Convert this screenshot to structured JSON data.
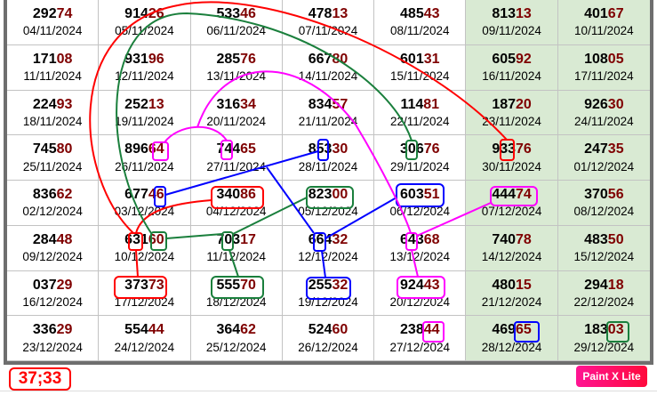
{
  "colors": {
    "head": "#000000",
    "tail": "#7f0000",
    "weekend_bg": "#d9ead3",
    "red": "#ff0000",
    "green": "#1a7f3c",
    "blue": "#0000ff",
    "magenta": "#ff00ff"
  },
  "rows": [
    [
      {
        "a": "292",
        "b": "74",
        "date": "04/11/2024"
      },
      {
        "a": "914",
        "b": "26",
        "date": "05/11/2024"
      },
      {
        "a": "533",
        "b": "46",
        "date": "06/11/2024"
      },
      {
        "a": "478",
        "b": "13",
        "date": "07/11/2024"
      },
      {
        "a": "485",
        "b": "43",
        "date": "08/11/2024"
      },
      {
        "a": "813",
        "b": "13",
        "date": "09/11/2024"
      },
      {
        "a": "401",
        "b": "67",
        "date": "10/11/2024"
      }
    ],
    [
      {
        "a": "171",
        "b": "08",
        "date": "11/11/2024"
      },
      {
        "a": "931",
        "b": "96",
        "date": "12/11/2024"
      },
      {
        "a": "285",
        "b": "76",
        "date": "13/11/2024"
      },
      {
        "a": "667",
        "b": "80",
        "date": "14/11/2024"
      },
      {
        "a": "601",
        "b": "31",
        "date": "15/11/2024"
      },
      {
        "a": "605",
        "b": "92",
        "date": "16/11/2024"
      },
      {
        "a": "108",
        "b": "05",
        "date": "17/11/2024"
      }
    ],
    [
      {
        "a": "224",
        "b": "93",
        "date": "18/11/2024"
      },
      {
        "a": "252",
        "b": "13",
        "date": "19/11/2024"
      },
      {
        "a": "316",
        "b": "34",
        "date": "20/11/2024"
      },
      {
        "a": "834",
        "b": "57",
        "date": "21/11/2024"
      },
      {
        "a": "114",
        "b": "81",
        "date": "22/11/2024"
      },
      {
        "a": "187",
        "b": "20",
        "date": "23/11/2024"
      },
      {
        "a": "926",
        "b": "30",
        "date": "24/11/2024"
      }
    ],
    [
      {
        "a": "745",
        "b": "80",
        "date": "25/11/2024"
      },
      {
        "a": "896",
        "b": "64",
        "date": "26/11/2024"
      },
      {
        "a": "744",
        "b": "65",
        "date": "27/11/2024"
      },
      {
        "a": "853",
        "b": "30",
        "date": "28/11/2024"
      },
      {
        "a": "306",
        "b": "76",
        "date": "29/11/2024"
      },
      {
        "a": "933",
        "b": "76",
        "date": "30/11/2024"
      },
      {
        "a": "247",
        "b": "35",
        "date": "01/12/2024"
      }
    ],
    [
      {
        "a": "836",
        "b": "62",
        "date": "02/12/2024"
      },
      {
        "a": "677",
        "b": "46",
        "date": "03/12/2024"
      },
      {
        "a": "340",
        "b": "86",
        "date": "04/12/2024"
      },
      {
        "a": "823",
        "b": "00",
        "date": "05/12/2024"
      },
      {
        "a": "603",
        "b": "51",
        "date": "06/12/2024"
      },
      {
        "a": "444",
        "b": "74",
        "date": "07/12/2024"
      },
      {
        "a": "370",
        "b": "56",
        "date": "08/12/2024"
      }
    ],
    [
      {
        "a": "284",
        "b": "48",
        "date": "09/12/2024"
      },
      {
        "a": "631",
        "b": "60",
        "date": "10/12/2024"
      },
      {
        "a": "703",
        "b": "17",
        "date": "11/12/2024"
      },
      {
        "a": "664",
        "b": "32",
        "date": "12/12/2024"
      },
      {
        "a": "643",
        "b": "68",
        "date": "13/12/2024"
      },
      {
        "a": "740",
        "b": "78",
        "date": "14/12/2024"
      },
      {
        "a": "483",
        "b": "50",
        "date": "15/12/2024"
      }
    ],
    [
      {
        "a": "037",
        "b": "29",
        "date": "16/12/2024"
      },
      {
        "a": "373",
        "b": "73",
        "date": "17/12/2024"
      },
      {
        "a": "555",
        "b": "70",
        "date": "18/12/2024"
      },
      {
        "a": "255",
        "b": "32",
        "date": "19/12/2024"
      },
      {
        "a": "924",
        "b": "43",
        "date": "20/12/2024"
      },
      {
        "a": "480",
        "b": "15",
        "date": "21/12/2024"
      },
      {
        "a": "294",
        "b": "18",
        "date": "22/12/2024"
      }
    ],
    [
      {
        "a": "336",
        "b": "29",
        "date": "23/12/2024"
      },
      {
        "a": "554",
        "b": "44",
        "date": "24/12/2024"
      },
      {
        "a": "364",
        "b": "62",
        "date": "25/12/2024"
      },
      {
        "a": "524",
        "b": "60",
        "date": "26/12/2024"
      },
      {
        "a": "238",
        "b": "44",
        "date": "27/12/2024"
      },
      {
        "a": "469",
        "b": "65",
        "date": "28/12/2024"
      },
      {
        "a": "183",
        "b": "03",
        "date": "29/12/2024"
      }
    ]
  ],
  "footer": {
    "score": "37;33",
    "badge": "Paint X Lite"
  }
}
